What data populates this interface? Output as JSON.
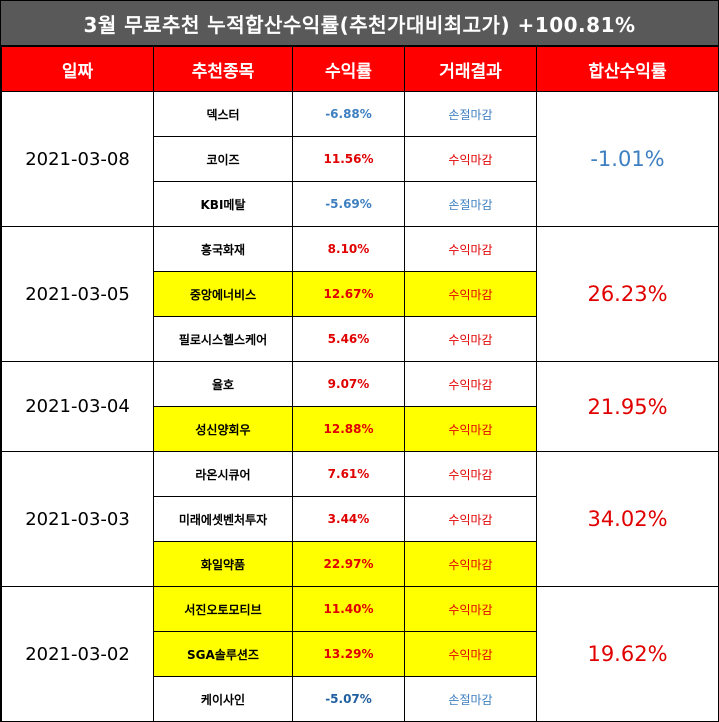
{
  "title": "3월 무료추천 누적합산수익률(추천가대비최고가) +100.81%",
  "headers": [
    "일짜",
    "추천종목",
    "수익률",
    "거래결과",
    "합산수익률"
  ],
  "groups": [
    {
      "date": "2021-03-08",
      "total": "-1.01%",
      "total_sign": "neg",
      "rows": [
        {
          "name": "덱스터",
          "return": "-6.88%",
          "result": "손절마감",
          "sign": "neg",
          "highlight": false
        },
        {
          "name": "코이즈",
          "return": "11.56%",
          "result": "수익마감",
          "sign": "pos",
          "highlight": false
        },
        {
          "name": "KBI메탈",
          "return": "-5.69%",
          "result": "손절마감",
          "sign": "neg",
          "highlight": false
        }
      ]
    },
    {
      "date": "2021-03-05",
      "total": "26.23%",
      "total_sign": "pos",
      "rows": [
        {
          "name": "흥국화재",
          "return": "8.10%",
          "result": "수익마감",
          "sign": "pos",
          "highlight": false
        },
        {
          "name": "중앙에너비스",
          "return": "12.67%",
          "result": "수익마감",
          "sign": "pos",
          "highlight": true
        },
        {
          "name": "필로시스헬스케어",
          "return": "5.46%",
          "result": "수익마감",
          "sign": "pos",
          "highlight": false
        }
      ]
    },
    {
      "date": "2021-03-04",
      "total": "21.95%",
      "total_sign": "pos",
      "rows": [
        {
          "name": "율호",
          "return": "9.07%",
          "result": "수익마감",
          "sign": "pos",
          "highlight": false
        },
        {
          "name": "성신양회우",
          "return": "12.88%",
          "result": "수익마감",
          "sign": "pos",
          "highlight": true
        }
      ]
    },
    {
      "date": "2021-03-03",
      "total": "34.02%",
      "total_sign": "pos",
      "rows": [
        {
          "name": "라온시큐어",
          "return": "7.61%",
          "result": "수익마감",
          "sign": "pos",
          "highlight": false
        },
        {
          "name": "미래에셋벤처투자",
          "return": "3.44%",
          "result": "수익마감",
          "sign": "pos",
          "highlight": false
        },
        {
          "name": "화일약품",
          "return": "22.97%",
          "result": "수익마감",
          "sign": "pos",
          "highlight": true
        }
      ]
    },
    {
      "date": "2021-03-02",
      "total": "19.62%",
      "total_sign": "pos",
      "rows": [
        {
          "name": "서진오토모티브",
          "return": "11.40%",
          "result": "수익마감",
          "sign": "pos",
          "highlight": true
        },
        {
          "name": "SGA솔루션즈",
          "return": "13.29%",
          "result": "수익마감",
          "sign": "pos",
          "highlight": true
        },
        {
          "name": "케이사인",
          "return": "-5.07%",
          "result": "손절마감",
          "sign": "negbold",
          "highlight": false
        }
      ]
    }
  ],
  "colors": {
    "title_bg": "#595959",
    "header_bg": "#ff0000",
    "highlight": "#ffff00",
    "positive": "#e00000",
    "negative": "#3d7fc0"
  }
}
